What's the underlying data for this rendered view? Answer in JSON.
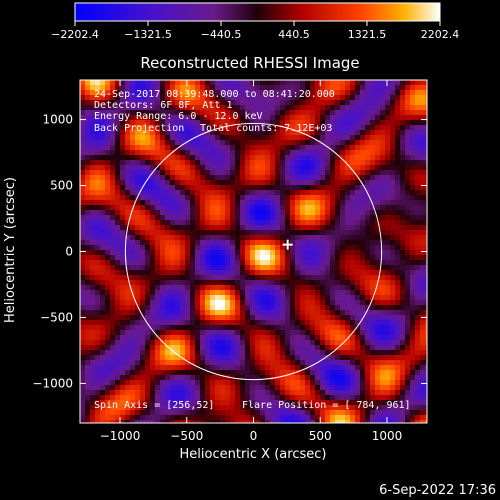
{
  "chart_data": {
    "type": "heatmap",
    "title": "Reconstructed RHESSI Image",
    "xlabel": "Heliocentric X (arcsec)",
    "ylabel": "Heliocentric Y (arcsec)",
    "xlim": [
      -1300,
      1300
    ],
    "ylim": [
      -1300,
      1300
    ],
    "x_ticks": [
      -1000,
      -500,
      0,
      500,
      1000
    ],
    "y_ticks": [
      -1000,
      -500,
      0,
      500,
      1000
    ],
    "x_tick_labels": [
      "−1000",
      "−500",
      "0",
      "500",
      "1000"
    ],
    "y_tick_labels": [
      "−1000",
      "−500",
      "0",
      "500",
      "1000"
    ],
    "colorbar": {
      "min": -2202.4,
      "max": 2202.4,
      "ticks": [
        -2202.4,
        -1321.5,
        -440.5,
        440.5,
        1321.5,
        2202.4
      ],
      "tick_labels": [
        "−2202.4",
        "−1321.5",
        "−440.5",
        "440.5",
        "1321.5",
        "2202.4"
      ],
      "colormap": "blue-purple-red-yellow-white"
    },
    "annotations": [
      "24-Sep-2017 08:39:48.000 to 08:41:20.000",
      "Detectors: 6F 8F, Att 1",
      "Energy Range: 6.0 - 12.0 keV",
      "Back Projection",
      "Total counts: 7.12E+03"
    ],
    "spin_axis": "Spin Axis = [256,52]",
    "flare_position": "Flare Position = [ 784, 961]",
    "solar_limb_radius": 960,
    "marker": {
      "x": 256,
      "y": 52
    }
  },
  "footer": {
    "timestamp": "6-Sep-2022 17:36"
  }
}
